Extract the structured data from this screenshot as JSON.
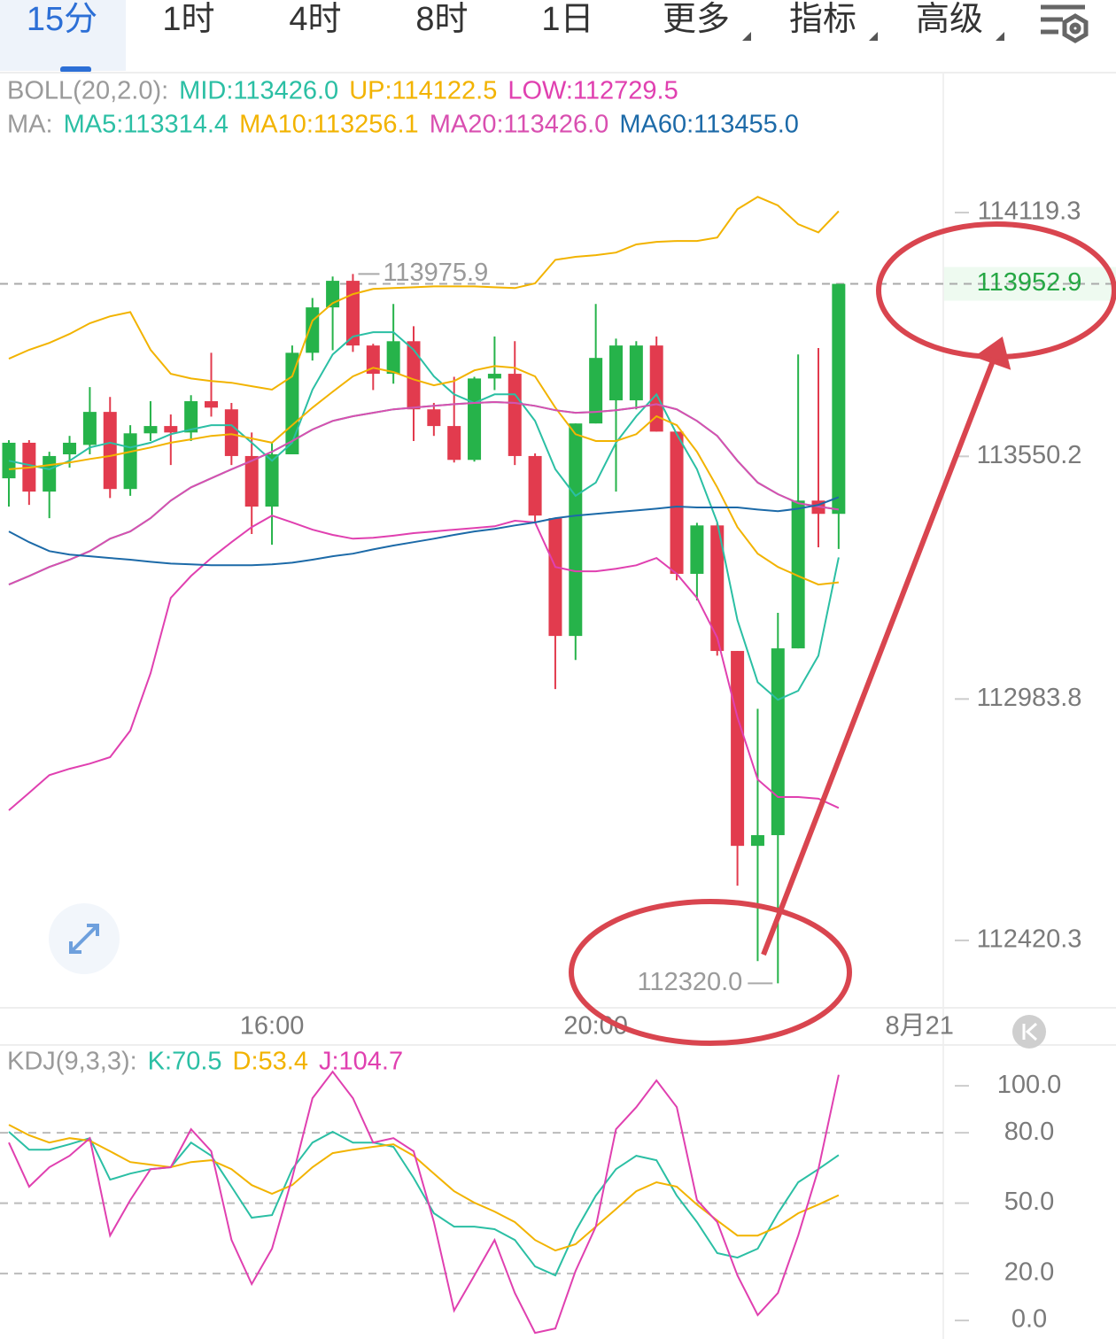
{
  "tabs": [
    "15分",
    "1时",
    "4时",
    "8时",
    "1日",
    "更多",
    "指标",
    "高级"
  ],
  "chart_data": [
    {
      "type": "candlestick",
      "categories": [
        null,
        null,
        null,
        null,
        null,
        null,
        null,
        null,
        null,
        null,
        null,
        null,
        null,
        "16:00",
        null,
        null,
        null,
        null,
        null,
        null,
        null,
        null,
        null,
        null,
        null,
        null,
        null,
        null,
        null,
        "20:00",
        null,
        null,
        null,
        null,
        null,
        null,
        null,
        null,
        null,
        null,
        null,
        null,
        null,
        null,
        null,
        "8月21"
      ],
      "open": [
        113499,
        113582,
        113468,
        113555,
        113577,
        113654,
        113474,
        113604,
        113621,
        113606,
        113679,
        113660,
        113551,
        113433,
        113555,
        113792,
        113898,
        113960,
        113809,
        113743,
        113819,
        113660,
        113621,
        113542,
        113732,
        113743,
        113551,
        113406,
        113131,
        113627,
        113681,
        113681,
        113809,
        113608,
        113276,
        113389,
        113096,
        112641,
        112666,
        113102,
        113447,
        113416,
        null,
        null,
        null,
        null
      ],
      "high": [
        113588,
        113588,
        113561,
        113598,
        113712,
        113689,
        113623,
        113679,
        113648,
        113693,
        113792,
        113675,
        113606,
        113582,
        113809,
        113920,
        113970,
        113975.9,
        113813,
        113906,
        113854,
        113675,
        113736,
        113736,
        113830,
        113819,
        113557,
        113406,
        113627,
        113906,
        113825,
        113819,
        113830,
        113608,
        113395,
        113395,
        113096,
        112961,
        113185,
        113788,
        113803,
        113952.9,
        null,
        null,
        null,
        null
      ],
      "low": [
        113433,
        113437,
        113406,
        113524,
        113555,
        113453,
        113458,
        113586,
        113530,
        113586,
        113643,
        113530,
        113369,
        113344,
        113555,
        113774,
        113798,
        113794,
        113705,
        113720,
        113586,
        113598,
        113536,
        113538,
        113705,
        113530,
        113395,
        113007,
        113075,
        113627,
        113468,
        113660,
        113608,
        113261,
        113214,
        113085,
        112548,
        112372,
        112320.0,
        113102,
        113338,
        113334,
        null,
        null,
        null,
        null
      ],
      "close": [
        113582,
        113468,
        113551,
        113582,
        113654,
        113474,
        113604,
        113621,
        113606,
        113679,
        113664,
        113551,
        113433,
        113555,
        113792,
        113898,
        113960,
        113809,
        113743,
        113819,
        113660,
        113621,
        113542,
        113732,
        113743,
        113551,
        113412,
        113131,
        113627,
        113780,
        113809,
        113809,
        113608,
        113276,
        113389,
        113096,
        112641,
        112666,
        113102,
        113447,
        113416,
        113952.9,
        null,
        null,
        null,
        null
      ],
      "up_color": "#26b34a",
      "down_color": "#e23b4e",
      "ylim": [
        112263,
        114446
      ],
      "yticks": [
        114119.3,
        113550.2,
        112983.8,
        112420.3
      ],
      "grid": false,
      "last_price": 113952.9,
      "high_label": 113975.9,
      "low_label": {
        "value": 112320,
        "label": "112320.0"
      },
      "bands": {
        "label": "BOLL(20,2.0):",
        "series": [
          {
            "name": "MID:113426.0",
            "color": "#2bbfa4",
            "values": [
              113251,
              113271,
              113292,
              113309,
              113329,
              113358,
              113375,
              113406,
              113447,
              113478,
              113499,
              113520,
              113540,
              113561,
              113586,
              113613,
              113633,
              113644,
              113652,
              113660,
              113664,
              113668,
              113672,
              113675,
              113677,
              113675,
              113668,
              113658,
              113652,
              113654,
              113658,
              113664,
              113672,
              113660,
              113633,
              113598,
              113540,
              113489,
              113462,
              113441,
              113433,
              113426.0,
              null,
              null,
              null,
              null
            ]
          },
          {
            "name": "UP:114122.5",
            "color": "#f2b300",
            "values": [
              113778,
              113799,
              113815,
              113836,
              113861,
              113877,
              113887,
              113799,
              113743,
              113732,
              113726,
              113722,
              113714,
              113706,
              113737,
              113867,
              113908,
              113929,
              113941,
              113943,
              113945,
              113947,
              113947,
              113947,
              113945,
              113943,
              113954,
              114009,
              114016,
              114020,
              114026,
              114045,
              114051,
              114053,
              114053,
              114061,
              114127,
              114156,
              114136,
              114092,
              114073,
              114122.5,
              null,
              null,
              null,
              null
            ]
          },
          {
            "name": "LOW:112729.5",
            "color": "#e040b0",
            "values": [
              112724,
              112765,
              112806,
              112821,
              112833,
              112848,
              112910,
              113044,
              113220,
              113271,
              113313,
              113350,
              113385,
              113412,
              113396,
              113379,
              113367,
              113358,
              113360,
              113365,
              113371,
              113375,
              113379,
              113383,
              113387,
              113400,
              113396,
              113292,
              113282,
              113282,
              113288,
              113296,
              113313,
              113276,
              113220,
              113127,
              112941,
              112796,
              112755,
              112755,
              112751,
              112729.5,
              null,
              null,
              null,
              null
            ]
          }
        ]
      },
      "ma": {
        "label": "MA:",
        "series": [
          {
            "name": "MA5:113314.4",
            "color": "#2bbfa4",
            "values": [
              113540,
              113530,
              113520,
              113540,
              113571,
              113582,
              113571,
              113582,
              113602,
              113613,
              113623,
              113623,
              113582,
              113540,
              113582,
              113706,
              113788,
              113830,
              113840,
              113840,
              113799,
              113737,
              113695,
              113675,
              113695,
              113695,
              113633,
              113520,
              113458,
              113489,
              113582,
              113644,
              113695,
              113602,
              113520,
              113396,
              113168,
              113023,
              112982,
              113003,
              113085,
              113314.4,
              null,
              null,
              null,
              null
            ]
          },
          {
            "name": "MA10:113256.1",
            "color": "#f2b300",
            "values": [
              113520,
              113524,
              113530,
              113536,
              113544,
              113551,
              113561,
              113571,
              113582,
              113590,
              113598,
              113602,
              113592,
              113582,
              113623,
              113664,
              113701,
              113737,
              113757,
              113747,
              113730,
              113716,
              113726,
              113751,
              113761,
              113757,
              113737,
              113664,
              113602,
              113586,
              113586,
              113602,
              113644,
              113623,
              113561,
              113478,
              113385,
              113323,
              113292,
              113271,
              113251,
              113256.1,
              null,
              null,
              null,
              null
            ]
          },
          {
            "name": "MA20:113426.0",
            "color": "#d94fb0",
            "values": [
              113251,
              113271,
              113292,
              113309,
              113329,
              113358,
              113375,
              113406,
              113447,
              113478,
              113499,
              113520,
              113540,
              113561,
              113586,
              113613,
              113633,
              113644,
              113652,
              113660,
              113664,
              113668,
              113672,
              113675,
              113677,
              113675,
              113668,
              113658,
              113652,
              113654,
              113658,
              113664,
              113672,
              113660,
              113633,
              113598,
              113540,
              113489,
              113462,
              113441,
              113433,
              113426.0,
              null,
              null,
              null,
              null
            ]
          },
          {
            "name": "MA60:113455.0",
            "color": "#1c6aa8",
            "values": [
              113375,
              113350,
              113329,
              113321,
              113317,
              113313,
              113309,
              113304,
              113300,
              113298,
              113296,
              113296,
              113296,
              113298,
              113302,
              113309,
              113317,
              113323,
              113333,
              113342,
              113350,
              113358,
              113367,
              113375,
              113381,
              113389,
              113396,
              113406,
              113412,
              113416,
              113420,
              113424,
              113428,
              113433,
              113431,
              113431,
              113431,
              113426,
              113422,
              113428,
              113437,
              113455.0,
              null,
              null,
              null,
              null
            ]
          }
        ]
      }
    },
    {
      "type": "line",
      "title": "KDJ(9,3,3):",
      "ylim": [
        -7.9,
        117.4
      ],
      "yticks": [
        {
          "value": 100,
          "label": "100.0"
        },
        {
          "value": 80,
          "label": "80.0"
        },
        {
          "value": 50,
          "label": "50.0"
        },
        {
          "value": 20,
          "label": "20.0"
        },
        {
          "value": 0,
          "label": "0.0"
        }
      ],
      "reference_lines": [
        80,
        50,
        20
      ],
      "series": [
        {
          "name": "K:70.5",
          "color": "#2bbfa4",
          "values": [
            80.4,
            72.8,
            72.8,
            75.1,
            77.7,
            60.0,
            62.6,
            64.5,
            65.3,
            75.8,
            70.2,
            57.0,
            43.8,
            44.9,
            64.5,
            75.8,
            80.4,
            75.8,
            75.8,
            74.0,
            60.8,
            45.7,
            40.0,
            40.0,
            38.9,
            34.3,
            23.0,
            19.2,
            38.1,
            53.2,
            64.5,
            70.2,
            68.3,
            53.2,
            41.9,
            28.7,
            26.8,
            30.6,
            45.7,
            58.9,
            64.5,
            70.5
          ]
        },
        {
          "name": "D:53.4",
          "color": "#f2b300",
          "values": [
            83.4,
            78.9,
            75.8,
            77.7,
            76.6,
            72.1,
            67.5,
            66.4,
            65.3,
            67.5,
            68.3,
            64.5,
            57.7,
            54.0,
            57.7,
            65.3,
            71.3,
            72.8,
            74.0,
            75.1,
            70.2,
            62.6,
            55.1,
            50.2,
            46.4,
            41.9,
            34.3,
            29.8,
            32.5,
            40.0,
            47.5,
            55.1,
            58.9,
            57.0,
            49.4,
            42.6,
            36.2,
            36.2,
            40.0,
            45.7,
            49.4,
            53.4
          ]
        },
        {
          "name": "J:104.7",
          "color": "#e040b0",
          "values": [
            75.8,
            57.0,
            65.3,
            70.2,
            77.7,
            36.2,
            51.3,
            64.5,
            65.3,
            81.5,
            72.1,
            34.3,
            15.5,
            30.6,
            60.8,
            94.7,
            106.0,
            94.7,
            75.8,
            77.7,
            72.1,
            41.9,
            4.2,
            19.2,
            34.3,
            11.7,
            -5.3,
            -3.4,
            21.1,
            40.0,
            81.5,
            90.9,
            102.3,
            90.9,
            51.3,
            41.9,
            19.2,
            2.3,
            11.7,
            36.2,
            64.5,
            104.7
          ]
        }
      ]
    }
  ]
}
